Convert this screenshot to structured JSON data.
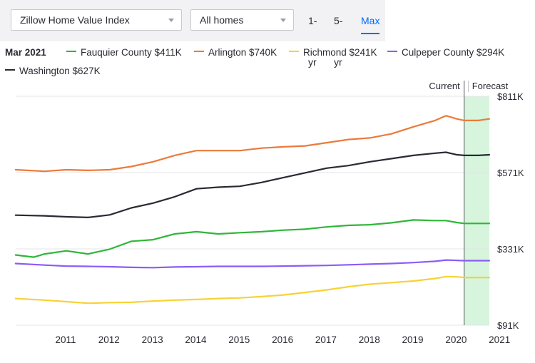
{
  "controls": {
    "index_select": "Zillow Home Value Index",
    "homes_select": "All homes",
    "ranges": [
      {
        "label": "1-yr",
        "active": false
      },
      {
        "label": "5-yr",
        "active": false
      },
      {
        "label": "Max",
        "active": true
      }
    ]
  },
  "legend": {
    "date": "Mar 2021",
    "entries": [
      {
        "label": "Fauquier County $411K",
        "color": "#2fb63a"
      },
      {
        "label": "Arlington $740K",
        "color": "#eb7a3a"
      },
      {
        "label": "Richmond $241K",
        "color": "#f7d237"
      },
      {
        "label": "Culpeper County $294K",
        "color": "#8b5cf6"
      },
      {
        "label": "Washington $627K",
        "color": "#2a2a33"
      }
    ]
  },
  "markers": {
    "current": "Current",
    "forecast": "Forecast"
  },
  "chart_data": {
    "type": "line",
    "xlabel": "",
    "ylabel": "",
    "x_ticks": [
      "2011",
      "2012",
      "2013",
      "2014",
      "2015",
      "2016",
      "2017",
      "2018",
      "2019",
      "2020",
      "2021"
    ],
    "y_ticks": [
      "$91K",
      "$331K",
      "$571K",
      "$811K"
    ],
    "ylim": [
      91,
      811
    ],
    "y_unit": "thousands USD",
    "grid": "horizontal",
    "forecast_start": 2020.67,
    "forecast_end": 2021.25,
    "forecast_color": "#d6f5dc",
    "series": [
      {
        "name": "Arlington",
        "color": "#eb7a3a",
        "x": [
          2010.33,
          2011.0,
          2011.5,
          2012.0,
          2012.5,
          2013.0,
          2013.5,
          2014.0,
          2014.5,
          2015.0,
          2015.5,
          2016.0,
          2016.5,
          2017.0,
          2017.5,
          2018.0,
          2018.5,
          2019.0,
          2019.5,
          2020.0,
          2020.25,
          2020.5,
          2020.67,
          2021.0,
          2021.25
        ],
        "y": [
          580,
          575,
          580,
          578,
          580,
          590,
          605,
          625,
          640,
          640,
          640,
          648,
          652,
          655,
          665,
          675,
          680,
          693,
          715,
          735,
          750,
          740,
          735,
          735,
          740
        ]
      },
      {
        "name": "Washington",
        "color": "#2a2a33",
        "x": [
          2010.33,
          2011.0,
          2011.5,
          2012.0,
          2012.5,
          2013.0,
          2013.5,
          2014.0,
          2014.5,
          2015.0,
          2015.5,
          2016.0,
          2016.5,
          2017.0,
          2017.5,
          2018.0,
          2018.5,
          2019.0,
          2019.5,
          2020.0,
          2020.25,
          2020.5,
          2020.67,
          2021.0,
          2021.25
        ],
        "y": [
          437,
          435,
          432,
          430,
          438,
          460,
          475,
          495,
          520,
          525,
          528,
          540,
          555,
          570,
          585,
          593,
          605,
          615,
          625,
          632,
          635,
          627,
          625,
          625,
          627
        ]
      },
      {
        "name": "Fauquier County",
        "color": "#2fb63a",
        "x": [
          2010.33,
          2010.75,
          2011.0,
          2011.5,
          2012.0,
          2012.5,
          2013.0,
          2013.5,
          2014.0,
          2014.5,
          2015.0,
          2015.5,
          2016.0,
          2016.5,
          2017.0,
          2017.5,
          2018.0,
          2018.5,
          2019.0,
          2019.5,
          2020.0,
          2020.25,
          2020.5,
          2020.67,
          2021.0,
          2021.25
        ],
        "y": [
          312,
          305,
          315,
          325,
          315,
          330,
          355,
          360,
          378,
          385,
          378,
          382,
          385,
          390,
          393,
          400,
          405,
          407,
          413,
          422,
          420,
          420,
          414,
          411,
          411,
          411
        ]
      },
      {
        "name": "Culpeper County",
        "color": "#8b5cf6",
        "x": [
          2010.33,
          2011.0,
          2011.5,
          2012.0,
          2012.5,
          2013.0,
          2013.5,
          2014.0,
          2014.5,
          2015.0,
          2015.5,
          2016.0,
          2016.5,
          2017.0,
          2017.5,
          2018.0,
          2018.5,
          2019.0,
          2019.5,
          2020.0,
          2020.25,
          2020.5,
          2020.67,
          2021.0,
          2021.25
        ],
        "y": [
          285,
          280,
          277,
          276,
          275,
          273,
          272,
          274,
          275,
          276,
          276,
          276,
          277,
          278,
          279,
          281,
          283,
          285,
          288,
          292,
          296,
          295,
          294,
          294,
          294
        ]
      },
      {
        "name": "Richmond",
        "color": "#f7d237",
        "x": [
          2010.33,
          2011.0,
          2011.5,
          2012.0,
          2012.5,
          2013.0,
          2013.5,
          2014.0,
          2014.5,
          2015.0,
          2015.5,
          2016.0,
          2016.5,
          2017.0,
          2017.5,
          2018.0,
          2018.5,
          2019.0,
          2019.5,
          2020.0,
          2020.25,
          2020.5,
          2020.67,
          2021.0,
          2021.25
        ],
        "y": [
          175,
          170,
          165,
          160,
          162,
          163,
          167,
          170,
          172,
          175,
          177,
          181,
          186,
          194,
          202,
          212,
          220,
          225,
          230,
          238,
          244,
          243,
          241,
          241,
          241
        ]
      }
    ]
  }
}
